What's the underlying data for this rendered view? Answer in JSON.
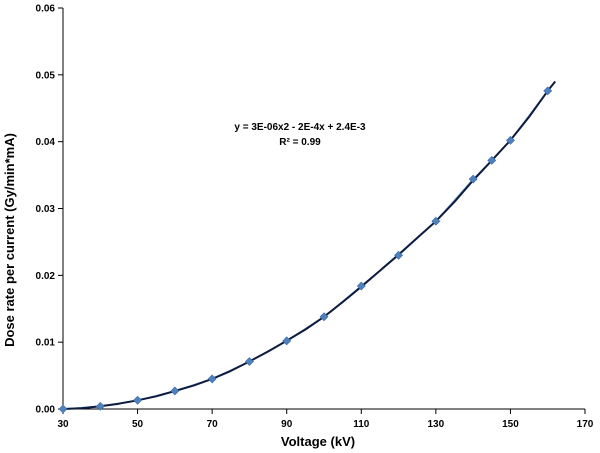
{
  "chart_data": {
    "type": "scatter",
    "xlabel": "Voltage (kV)",
    "ylabel": "Dose rate per current  (Gy/min*mA)",
    "xlim": [
      30,
      170
    ],
    "ylim": [
      0,
      0.06
    ],
    "x_ticks": [
      "30",
      "50",
      "70",
      "90",
      "110",
      "130",
      "150",
      "170"
    ],
    "y_ticks": [
      "0.00",
      "0.01",
      "0.02",
      "0.03",
      "0.04",
      "0.05",
      "0.06"
    ],
    "grid": false,
    "legend": "none",
    "series": [
      {
        "marker": "diamond",
        "color": "#4f81bd",
        "x": [
          30,
          40,
          50,
          60,
          70,
          80,
          90,
          100,
          110,
          120,
          130,
          140,
          145,
          150,
          160
        ],
        "y": [
          0.0,
          0.0004,
          0.0013,
          0.0027,
          0.0045,
          0.0071,
          0.0102,
          0.0138,
          0.0184,
          0.023,
          0.0281,
          0.0344,
          0.0372,
          0.0402,
          0.0476
        ]
      }
    ],
    "trendline": {
      "color": "#0d1b3e",
      "x": [
        30,
        35,
        40,
        45,
        50,
        55,
        60,
        65,
        70,
        75,
        80,
        85,
        90,
        95,
        100,
        105,
        110,
        115,
        120,
        125,
        130,
        135,
        140,
        145,
        150,
        155,
        160,
        162
      ],
      "y": [
        0.0,
        0.0001,
        0.0004,
        0.0008,
        0.0013,
        0.0019,
        0.0027,
        0.0035,
        0.0045,
        0.0057,
        0.0071,
        0.0086,
        0.0102,
        0.0119,
        0.0138,
        0.016,
        0.0183,
        0.0207,
        0.0231,
        0.0256,
        0.0281,
        0.031,
        0.0342,
        0.0372,
        0.0402,
        0.0437,
        0.0476,
        0.049
      ]
    },
    "annotation": {
      "equation": "y = 3E-06x2 - 2E-4x + 2.4E-3",
      "r_squared": "R² = 0.99"
    }
  }
}
